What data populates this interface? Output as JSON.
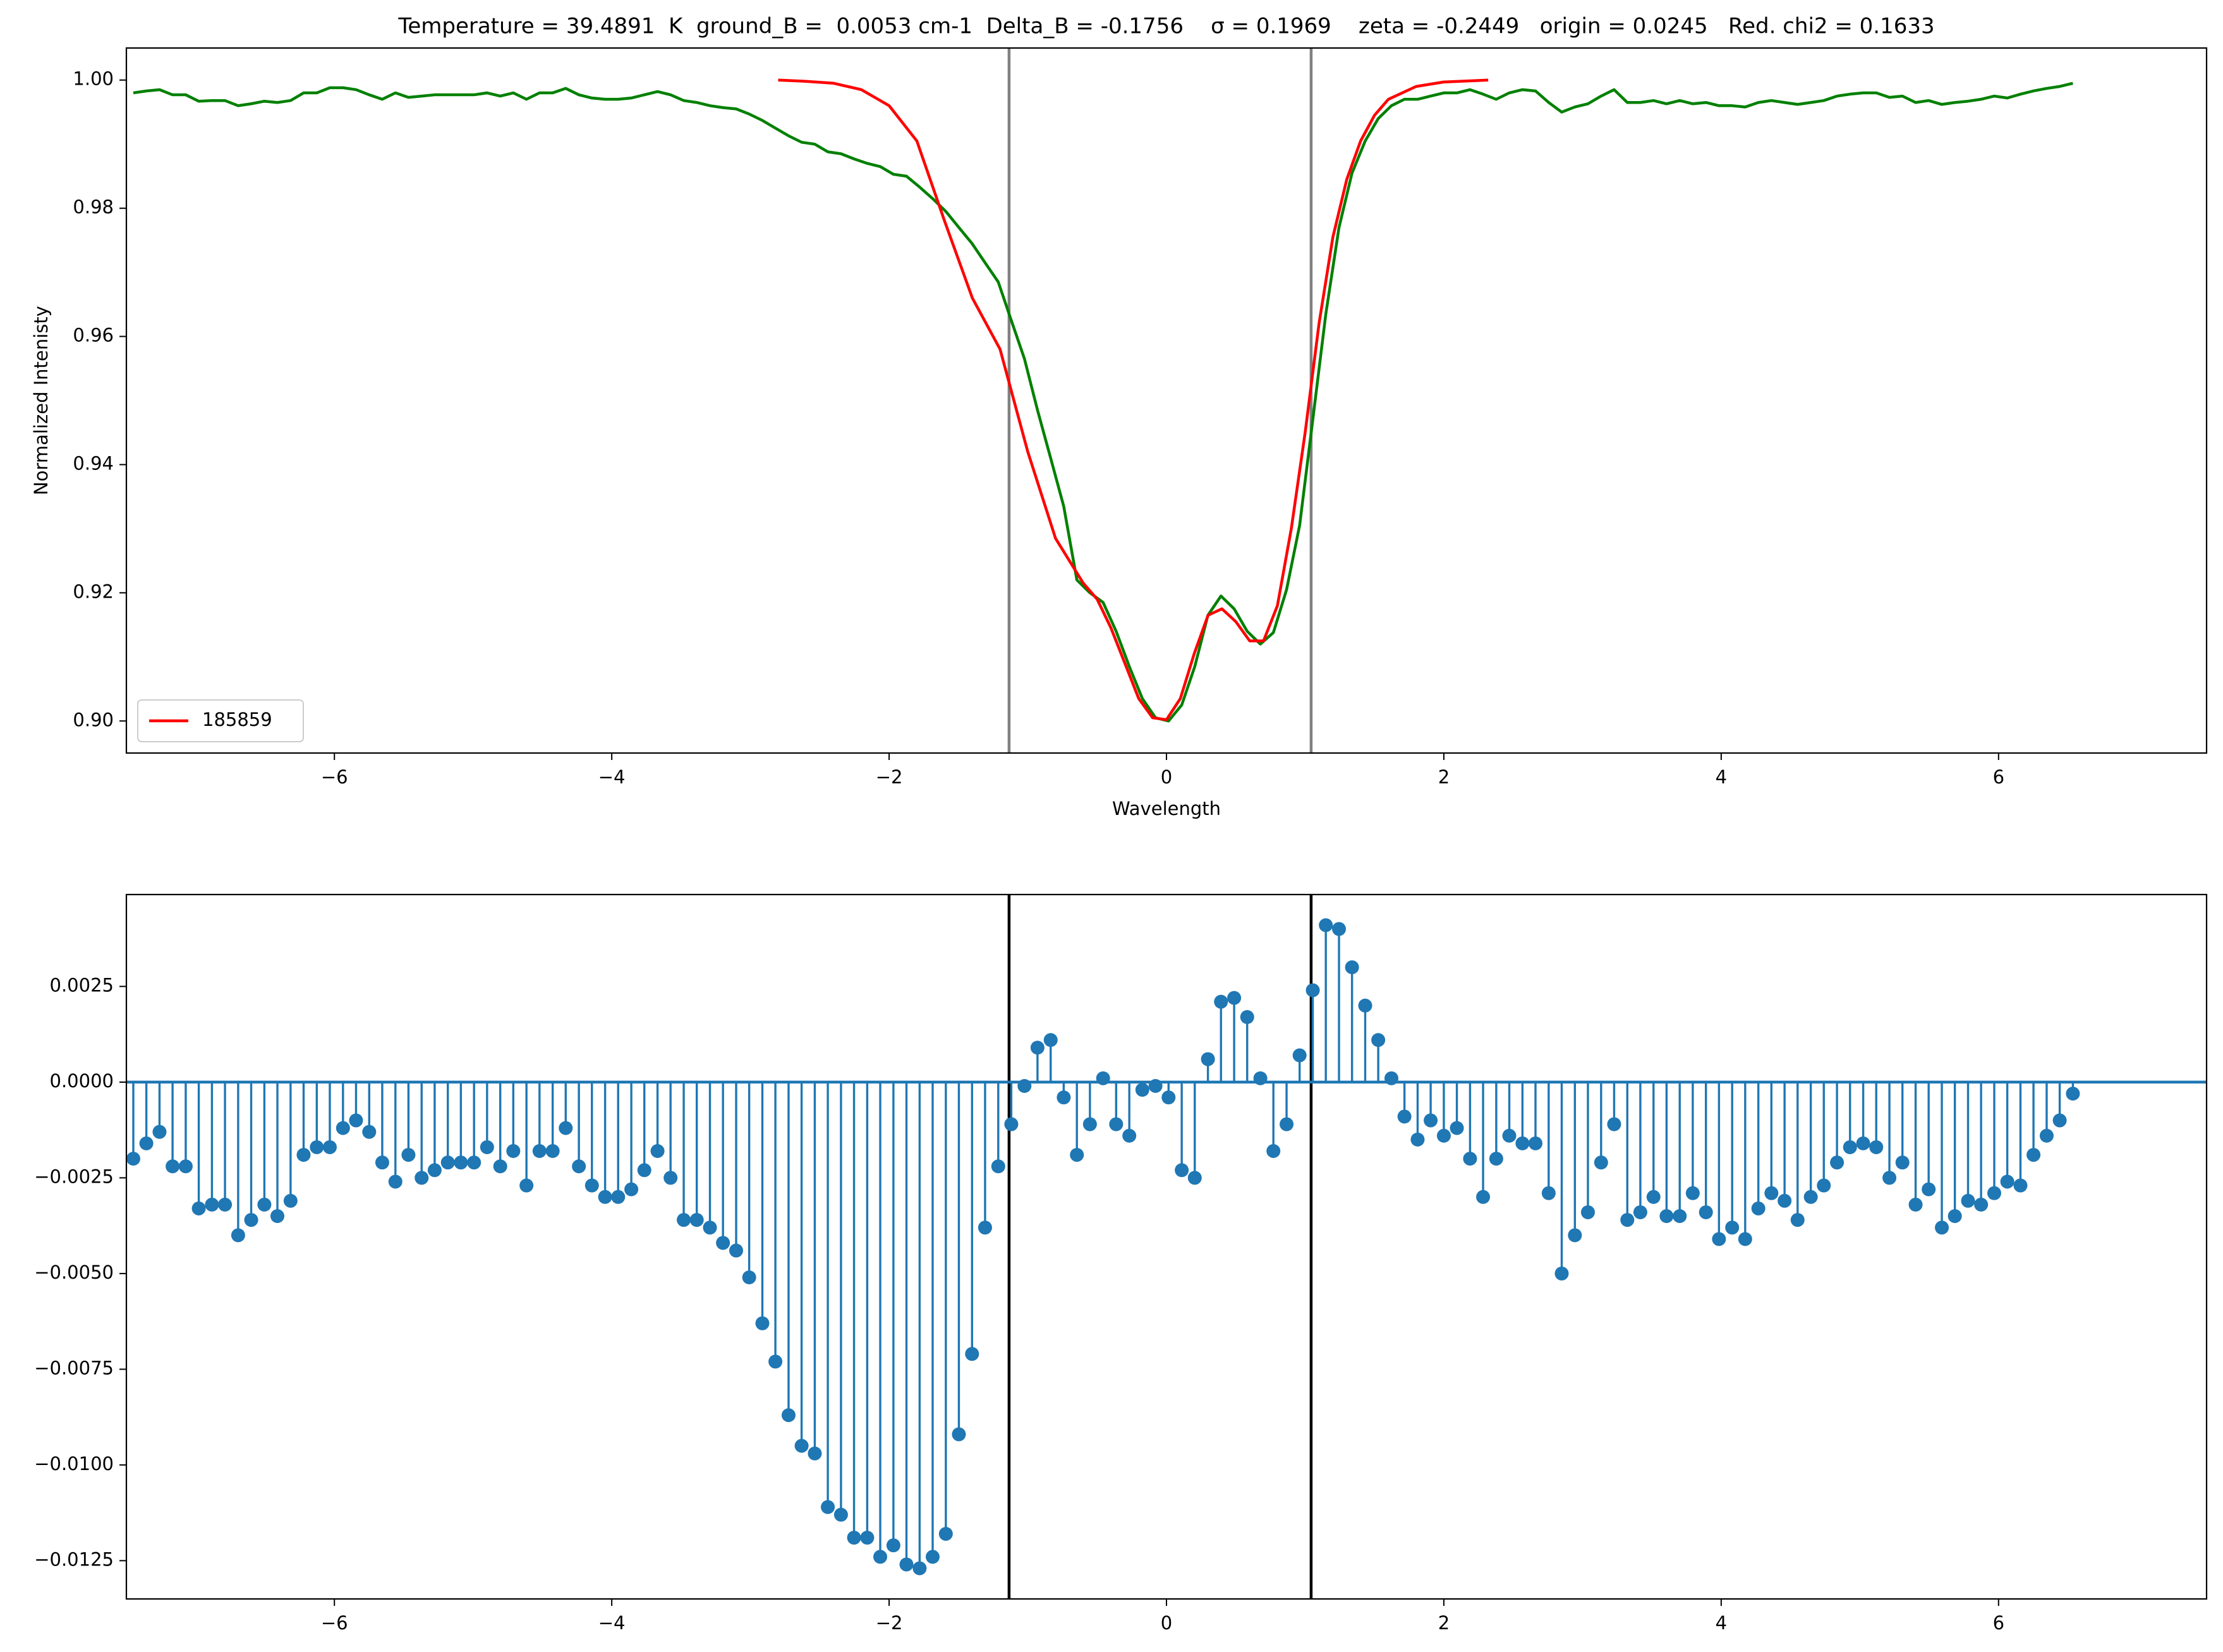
{
  "chart_data": [
    {
      "type": "line",
      "title": "Temperature = 39.4891  K  ground_B =  0.0053 cm-1  Delta_B = -0.1756    σ = 0.1969    zeta = -0.2449   origin = 0.0245   Red. chi2 = 0.1633",
      "xlabel": "Wavelength",
      "ylabel": "Normalized Intenisty",
      "xlim": [
        -7.5,
        7.5
      ],
      "ylim": [
        0.895,
        1.005
      ],
      "xticks": [
        {
          "value": -6,
          "label": "−6"
        },
        {
          "value": -4,
          "label": "−4"
        },
        {
          "value": -2,
          "label": "−2"
        },
        0,
        2,
        4,
        6
      ],
      "yticks": [
        {
          "value": 0.9,
          "label": "0.90"
        },
        0.92,
        0.94,
        0.96,
        0.98,
        {
          "value": 1.0,
          "label": "1.00"
        }
      ],
      "vlines": [
        -1.135,
        1.043
      ],
      "vline_color": "#808080",
      "legend": "lower left",
      "x": [
        -7.45,
        -7.356,
        -7.261,
        -7.167,
        -7.072,
        -6.978,
        -6.883,
        -6.789,
        -6.694,
        -6.6,
        -6.505,
        -6.411,
        -6.316,
        -6.222,
        -6.127,
        -6.033,
        -5.938,
        -5.844,
        -5.749,
        -5.655,
        -5.56,
        -5.466,
        -5.371,
        -5.277,
        -5.182,
        -5.088,
        -4.993,
        -4.899,
        -4.804,
        -4.71,
        -4.615,
        -4.521,
        -4.426,
        -4.332,
        -4.237,
        -4.143,
        -4.048,
        -3.954,
        -3.859,
        -3.765,
        -3.67,
        -3.576,
        -3.481,
        -3.387,
        -3.292,
        -3.198,
        -3.103,
        -3.009,
        -2.914,
        -2.82,
        -2.725,
        -2.631,
        -2.536,
        -2.442,
        -2.347,
        -2.253,
        -2.158,
        -2.064,
        -1.969,
        -1.875,
        -1.78,
        -1.686,
        -1.591,
        -1.497,
        -1.402,
        -1.308,
        -1.213,
        -1.119,
        -1.024,
        -0.93,
        -0.835,
        -0.741,
        -0.646,
        -0.552,
        -0.457,
        -0.363,
        -0.268,
        -0.174,
        -0.079,
        0.015,
        0.11,
        0.204,
        0.299,
        0.393,
        0.488,
        0.582,
        0.677,
        0.771,
        0.866,
        0.96,
        1.055,
        1.149,
        1.244,
        1.338,
        1.433,
        1.527,
        1.622,
        1.716,
        1.811,
        1.905,
        2.0,
        2.094,
        2.189,
        2.283,
        2.378,
        2.472,
        2.567,
        2.661,
        2.756,
        2.85,
        2.945,
        3.039,
        3.134,
        3.228,
        3.323,
        3.417,
        3.512,
        3.606,
        3.701,
        3.795,
        3.89,
        3.984,
        4.079,
        4.173,
        4.268,
        4.362,
        4.457,
        4.551,
        4.646,
        4.74,
        4.835,
        4.929,
        5.024,
        5.118,
        5.213,
        5.307,
        5.402,
        5.496,
        5.591,
        5.685,
        5.78,
        5.874,
        5.969,
        6.063,
        6.158,
        6.252,
        6.347,
        6.441,
        6.536
      ],
      "series": [
        {
          "color": "#008000",
          "values": [
            0.998,
            0.9983,
            0.9985,
            0.9977,
            0.9977,
            0.9967,
            0.9968,
            0.9968,
            0.996,
            0.9963,
            0.9967,
            0.9965,
            0.9968,
            0.998,
            0.998,
            0.9988,
            0.9988,
            0.9985,
            0.9977,
            0.997,
            0.998,
            0.9973,
            0.9975,
            0.9977,
            0.9977,
            0.9977,
            0.9977,
            0.998,
            0.9975,
            0.998,
            0.997,
            0.998,
            0.998,
            0.9987,
            0.9977,
            0.9972,
            0.997,
            0.997,
            0.9972,
            0.9977,
            0.9982,
            0.9977,
            0.9968,
            0.9965,
            0.996,
            0.9957,
            0.9955,
            0.9947,
            0.9937,
            0.9925,
            0.9913,
            0.9903,
            0.99,
            0.9888,
            0.9885,
            0.9877,
            0.987,
            0.9865,
            0.9853,
            0.985,
            0.9833,
            0.9815,
            0.9795,
            0.977,
            0.9745,
            0.9715,
            0.9685,
            0.9625,
            0.9565,
            0.9485,
            0.941,
            0.9335,
            0.922,
            0.92,
            0.9185,
            0.914,
            0.9085,
            0.9035,
            0.9005,
            0.9,
            0.9025,
            0.9085,
            0.9165,
            0.9195,
            0.9175,
            0.914,
            0.912,
            0.9138,
            0.9205,
            0.9305,
            0.947,
            0.9635,
            0.977,
            0.9855,
            0.9905,
            0.994,
            0.996,
            0.997,
            0.997,
            0.9975,
            0.998,
            0.998,
            0.9985,
            0.9978,
            0.997,
            0.998,
            0.9985,
            0.9983,
            0.9965,
            0.995,
            0.9958,
            0.9963,
            0.9975,
            0.9985,
            0.9965,
            0.9965,
            0.9968,
            0.9963,
            0.9968,
            0.9963,
            0.9965,
            0.996,
            0.996,
            0.9958,
            0.9965,
            0.9968,
            0.9965,
            0.9962,
            0.9965,
            0.9968,
            0.9975,
            0.9978,
            0.998,
            0.998,
            0.9973,
            0.9975,
            0.9965,
            0.9968,
            0.9962,
            0.9965,
            0.9967,
            0.997,
            0.9975,
            0.9972,
            0.9978,
            0.9983,
            0.9987,
            0.999,
            0.9995
          ]
        },
        {
          "name": "185859",
          "color": "#ff0000",
          "x": [
            -2.8,
            -2.6,
            -2.4,
            -2.2,
            -2.0,
            -1.8,
            -1.6,
            -1.4,
            -1.2,
            -1.0,
            -0.8,
            -0.6,
            -0.5,
            -0.4,
            -0.3,
            -0.2,
            -0.1,
            0.0,
            0.1,
            0.2,
            0.3,
            0.4,
            0.5,
            0.6,
            0.7,
            0.8,
            0.9,
            1.0,
            1.1,
            1.2,
            1.3,
            1.4,
            1.5,
            1.6,
            1.8,
            2.0,
            2.32
          ],
          "values": [
            1.0,
            0.9998,
            0.9995,
            0.9985,
            0.996,
            0.9905,
            0.978,
            0.966,
            0.958,
            0.942,
            0.9285,
            0.9215,
            0.919,
            0.9145,
            0.909,
            0.9035,
            0.9005,
            0.9002,
            0.9035,
            0.9105,
            0.9165,
            0.9175,
            0.9155,
            0.9125,
            0.9125,
            0.918,
            0.93,
            0.945,
            0.962,
            0.9755,
            0.9845,
            0.9905,
            0.9945,
            0.997,
            0.999,
            0.9997,
            1.0
          ]
        }
      ]
    },
    {
      "type": "stem",
      "xlim": [
        -7.5,
        7.5
      ],
      "ylim": [
        -0.0135,
        0.0049
      ],
      "xticks": [
        {
          "value": -6,
          "label": "−6"
        },
        {
          "value": -4,
          "label": "−4"
        },
        {
          "value": -2,
          "label": "−2"
        },
        0,
        2,
        4,
        6
      ],
      "yticks": [
        {
          "value": -0.0125,
          "label": "−0.0125"
        },
        {
          "value": -0.01,
          "label": "−0.0100"
        },
        {
          "value": -0.0075,
          "label": "−0.0075"
        },
        {
          "value": -0.005,
          "label": "−0.0050"
        },
        {
          "value": -0.0025,
          "label": "−0.0025"
        },
        {
          "value": 0,
          "label": "0.0000"
        },
        0.0025
      ],
      "vlines": [
        -1.135,
        1.043
      ],
      "vline_color": "#000000",
      "color": "#1f77b4",
      "x": [
        -7.45,
        -7.356,
        -7.261,
        -7.167,
        -7.072,
        -6.978,
        -6.883,
        -6.789,
        -6.694,
        -6.6,
        -6.505,
        -6.411,
        -6.316,
        -6.222,
        -6.127,
        -6.033,
        -5.938,
        -5.844,
        -5.749,
        -5.655,
        -5.56,
        -5.466,
        -5.371,
        -5.277,
        -5.182,
        -5.088,
        -4.993,
        -4.899,
        -4.804,
        -4.71,
        -4.615,
        -4.521,
        -4.426,
        -4.332,
        -4.237,
        -4.143,
        -4.048,
        -3.954,
        -3.859,
        -3.765,
        -3.67,
        -3.576,
        -3.481,
        -3.387,
        -3.292,
        -3.198,
        -3.103,
        -3.009,
        -2.914,
        -2.82,
        -2.725,
        -2.631,
        -2.536,
        -2.442,
        -2.347,
        -2.253,
        -2.158,
        -2.064,
        -1.969,
        -1.875,
        -1.78,
        -1.686,
        -1.591,
        -1.497,
        -1.402,
        -1.308,
        -1.213,
        -1.119,
        -1.024,
        -0.93,
        -0.835,
        -0.741,
        -0.646,
        -0.552,
        -0.457,
        -0.363,
        -0.268,
        -0.174,
        -0.079,
        0.015,
        0.11,
        0.204,
        0.299,
        0.393,
        0.488,
        0.582,
        0.677,
        0.771,
        0.866,
        0.96,
        1.055,
        1.149,
        1.244,
        1.338,
        1.433,
        1.527,
        1.622,
        1.716,
        1.811,
        1.905,
        2.0,
        2.094,
        2.189,
        2.283,
        2.378,
        2.472,
        2.567,
        2.661,
        2.756,
        2.85,
        2.945,
        3.039,
        3.134,
        3.228,
        3.323,
        3.417,
        3.512,
        3.606,
        3.701,
        3.795,
        3.89,
        3.984,
        4.079,
        4.173,
        4.268,
        4.362,
        4.457,
        4.551,
        4.646,
        4.74,
        4.835,
        4.929,
        5.024,
        5.118,
        5.213,
        5.307,
        5.402,
        5.496,
        5.591,
        5.685,
        5.78,
        5.874,
        5.969,
        6.063,
        6.158,
        6.252,
        6.347,
        6.441,
        6.536
      ],
      "values": [
        -0.002,
        -0.0016,
        -0.0013,
        -0.0022,
        -0.0022,
        -0.0033,
        -0.0032,
        -0.0032,
        -0.004,
        -0.0036,
        -0.0032,
        -0.0035,
        -0.0031,
        -0.0019,
        -0.0017,
        -0.0017,
        -0.0012,
        -0.001,
        -0.0013,
        -0.0021,
        -0.0026,
        -0.0019,
        -0.0025,
        -0.0023,
        -0.0021,
        -0.0021,
        -0.0021,
        -0.0017,
        -0.0022,
        -0.0018,
        -0.0027,
        -0.0018,
        -0.0018,
        -0.0012,
        -0.0022,
        -0.0027,
        -0.003,
        -0.003,
        -0.0028,
        -0.0023,
        -0.0018,
        -0.0025,
        -0.0036,
        -0.0036,
        -0.0038,
        -0.0042,
        -0.0044,
        -0.0051,
        -0.0063,
        -0.0073,
        -0.0087,
        -0.0095,
        -0.0097,
        -0.0111,
        -0.0113,
        -0.0119,
        -0.0119,
        -0.0124,
        -0.0121,
        -0.0126,
        -0.0127,
        -0.0124,
        -0.0118,
        -0.0092,
        -0.0071,
        -0.0038,
        -0.0022,
        -0.0011,
        -0.0001,
        0.0009,
        0.0011,
        -0.0004,
        -0.0019,
        -0.0011,
        0.0001,
        -0.0011,
        -0.0014,
        -0.0002,
        -0.0001,
        -0.0004,
        -0.0023,
        -0.0025,
        0.0006,
        0.0021,
        0.0022,
        0.0017,
        0.0001,
        -0.0018,
        -0.0011,
        0.0007,
        0.0024,
        0.0041,
        0.004,
        0.003,
        0.002,
        0.0011,
        0.0001,
        -0.0009,
        -0.0015,
        -0.001,
        -0.0014,
        -0.0012,
        -0.002,
        -0.003,
        -0.002,
        -0.0014,
        -0.0016,
        -0.0016,
        -0.0029,
        -0.005,
        -0.004,
        -0.0034,
        -0.0021,
        -0.0011,
        -0.0036,
        -0.0034,
        -0.003,
        -0.0035,
        -0.0035,
        -0.0029,
        -0.0034,
        -0.0041,
        -0.0038,
        -0.0041,
        -0.0033,
        -0.0029,
        -0.0031,
        -0.0036,
        -0.003,
        -0.0027,
        -0.0021,
        -0.0017,
        -0.0016,
        -0.0017,
        -0.0025,
        -0.0021,
        -0.0032,
        -0.0028,
        -0.0038,
        -0.0035,
        -0.0031,
        -0.0032,
        -0.0029,
        -0.0026,
        -0.0027,
        -0.0019,
        -0.0014,
        -0.001,
        -0.0003
      ]
    }
  ]
}
